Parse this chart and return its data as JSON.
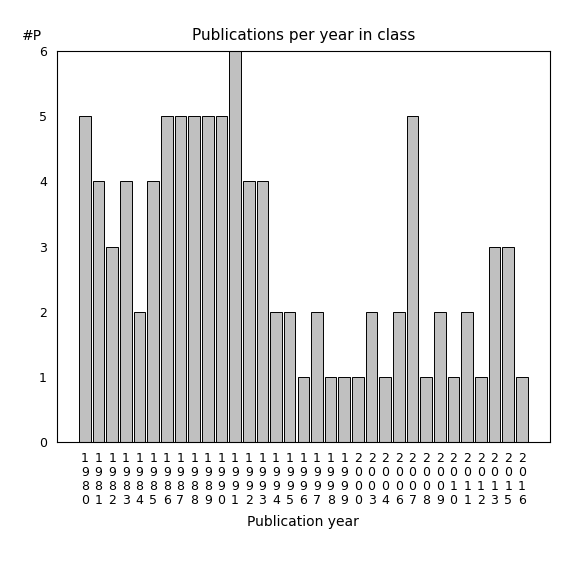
{
  "years": [
    "1980",
    "1981",
    "1982",
    "1983",
    "1984",
    "1985",
    "1986",
    "1987",
    "1988",
    "1989",
    "1990",
    "1991",
    "1992",
    "1993",
    "1994",
    "1995",
    "1996",
    "1997",
    "1998",
    "1999",
    "2000",
    "2003",
    "2004",
    "2006",
    "2007",
    "2008",
    "2009",
    "2010",
    "2011",
    "2012",
    "2013",
    "2015",
    "2016"
  ],
  "values": [
    5,
    4,
    3,
    4,
    2,
    4,
    5,
    5,
    5,
    5,
    5,
    6,
    4,
    4,
    2,
    2,
    1,
    2,
    1,
    1,
    1,
    2,
    1,
    2,
    5,
    1,
    2,
    1,
    2,
    1,
    3,
    3,
    1
  ],
  "bar_color": "#c0c0c0",
  "bar_edge_color": "#000000",
  "title": "Publications per year in class",
  "xlabel": "Publication year",
  "ylabel": "#P",
  "ylim": [
    0,
    6
  ],
  "yticks": [
    0,
    1,
    2,
    3,
    4,
    5,
    6
  ],
  "background_color": "#ffffff",
  "title_fontsize": 11,
  "label_fontsize": 10,
  "tick_fontsize": 9
}
